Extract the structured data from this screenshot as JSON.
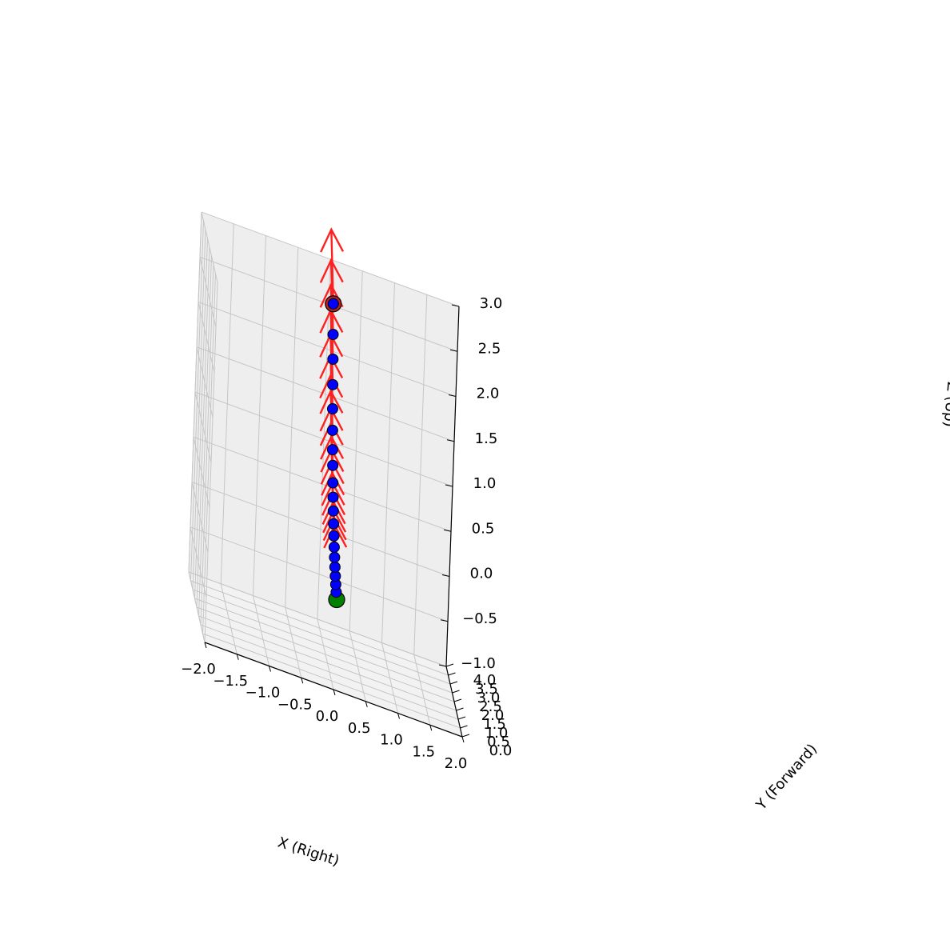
{
  "chart_data": {
    "type": "scatter3d-quiver",
    "title": "",
    "xlabel": "X (Right)",
    "ylabel": "Y (Forward)",
    "zlabel": "Z (Up)",
    "xlim": [
      -2.0,
      2.0
    ],
    "ylim": [
      0.0,
      4.0
    ],
    "zlim": [
      -1.0,
      3.0
    ],
    "x_ticks": [
      "−2.0",
      "−1.5",
      "−1.0",
      "−0.5",
      "0.0",
      "0.5",
      "1.0",
      "1.5",
      "2.0"
    ],
    "y_ticks": [
      "0.0",
      "0.5",
      "1.0",
      "1.5",
      "2.0",
      "2.5",
      "3.0",
      "3.5",
      "4.0"
    ],
    "z_ticks": [
      "−1.0",
      "−0.5",
      "0.0",
      "0.5",
      "1.0",
      "1.5",
      "2.0",
      "2.5",
      "3.0"
    ],
    "grid": true,
    "points": [
      {
        "x": 0.0,
        "y": 0.0,
        "z": 0.0
      },
      {
        "x": 0.0,
        "y": 0.156,
        "z": 0.052
      },
      {
        "x": 0.0,
        "y": 0.312,
        "z": 0.108
      },
      {
        "x": 0.0,
        "y": 0.468,
        "z": 0.17
      },
      {
        "x": 0.0,
        "y": 0.624,
        "z": 0.239
      },
      {
        "x": 0.0,
        "y": 0.78,
        "z": 0.317
      },
      {
        "x": 0.0,
        "y": 0.936,
        "z": 0.4
      },
      {
        "x": 0.0,
        "y": 1.092,
        "z": 0.494
      },
      {
        "x": 0.0,
        "y": 1.248,
        "z": 0.598
      },
      {
        "x": 0.0,
        "y": 1.404,
        "z": 0.71
      },
      {
        "x": 0.0,
        "y": 1.56,
        "z": 0.832
      },
      {
        "x": 0.0,
        "y": 1.716,
        "z": 0.962
      },
      {
        "x": 0.0,
        "y": 1.872,
        "z": 1.125
      },
      {
        "x": 0.0,
        "y": 2.028,
        "z": 1.269
      },
      {
        "x": 0.0,
        "y": 2.184,
        "z": 1.454
      },
      {
        "x": 0.0,
        "y": 2.34,
        "z": 1.662
      },
      {
        "x": 0.0,
        "y": 2.496,
        "z": 1.9
      },
      {
        "x": 0.0,
        "y": 2.652,
        "z": 2.153
      },
      {
        "x": 0.0,
        "y": 2.808,
        "z": 2.397
      },
      {
        "x": 0.0,
        "y": 3.0,
        "z": 2.7
      }
    ],
    "arrow": {
      "dy": 1.0,
      "dz": 0.63
    },
    "colors": {
      "point": "#0000ff",
      "arrow": "#ff2020",
      "start": "#008000",
      "end_ring": "#b22222",
      "pane_left": "#f6f6f6",
      "pane_right": "#eeeeee",
      "pane_floor": "#f2f2f2",
      "grid": "#c6c6c6"
    }
  }
}
